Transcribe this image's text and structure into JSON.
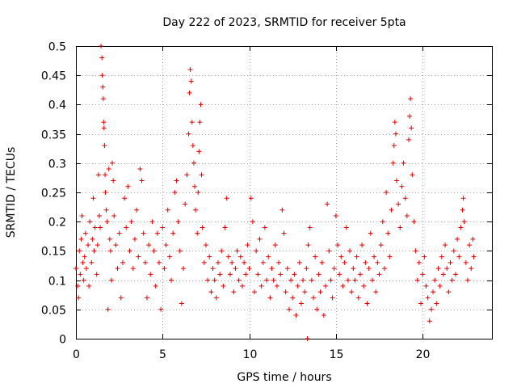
{
  "chart_data": {
    "type": "scatter",
    "title": "Day 222 of 2023, SRMTID for receiver 5pta",
    "xlabel": "GPS time / hours",
    "ylabel": "SRMTID / TECUs",
    "xlim": [
      0,
      24
    ],
    "ylim": [
      0,
      0.5
    ],
    "x_ticks": [
      "0",
      "5",
      "10",
      "15",
      "20"
    ],
    "y_ticks": [
      "0",
      "0.05",
      "0.1",
      "0.15",
      "0.2",
      "0.25",
      "0.3",
      "0.35",
      "0.4",
      "0.45",
      "0.5"
    ],
    "grid": true,
    "marker": "+",
    "color": "#e00000",
    "series": [
      {
        "name": "SRMTID",
        "points": [
          [
            0.0,
            0.12
          ],
          [
            0.1,
            0.09
          ],
          [
            0.15,
            0.07
          ],
          [
            0.2,
            0.15
          ],
          [
            0.25,
            0.11
          ],
          [
            0.3,
            0.17
          ],
          [
            0.35,
            0.21
          ],
          [
            0.4,
            0.13
          ],
          [
            0.45,
            0.1
          ],
          [
            0.5,
            0.14
          ],
          [
            0.55,
            0.18
          ],
          [
            0.6,
            0.12
          ],
          [
            0.7,
            0.16
          ],
          [
            0.75,
            0.09
          ],
          [
            0.8,
            0.2
          ],
          [
            0.9,
            0.13
          ],
          [
            0.95,
            0.17
          ],
          [
            1.0,
            0.24
          ],
          [
            1.05,
            0.15
          ],
          [
            1.1,
            0.19
          ],
          [
            1.2,
            0.11
          ],
          [
            1.25,
            0.16
          ],
          [
            1.3,
            0.28
          ],
          [
            1.35,
            0.21
          ],
          [
            1.4,
            0.19
          ],
          [
            1.45,
            0.5
          ],
          [
            1.5,
            0.48
          ],
          [
            1.52,
            0.45
          ],
          [
            1.55,
            0.43
          ],
          [
            1.58,
            0.41
          ],
          [
            1.6,
            0.37
          ],
          [
            1.62,
            0.36
          ],
          [
            1.65,
            0.33
          ],
          [
            1.68,
            0.28
          ],
          [
            1.7,
            0.25
          ],
          [
            1.75,
            0.22
          ],
          [
            1.8,
            0.2
          ],
          [
            1.85,
            0.05
          ],
          [
            1.9,
            0.29
          ],
          [
            1.95,
            0.17
          ],
          [
            2.0,
            0.15
          ],
          [
            2.05,
            0.1
          ],
          [
            2.1,
            0.3
          ],
          [
            2.15,
            0.27
          ],
          [
            2.2,
            0.21
          ],
          [
            2.3,
            0.16
          ],
          [
            2.4,
            0.12
          ],
          [
            2.5,
            0.18
          ],
          [
            2.6,
            0.07
          ],
          [
            2.7,
            0.13
          ],
          [
            2.8,
            0.24
          ],
          [
            2.9,
            0.19
          ],
          [
            3.0,
            0.26
          ],
          [
            3.1,
            0.15
          ],
          [
            3.2,
            0.2
          ],
          [
            3.3,
            0.12
          ],
          [
            3.4,
            0.17
          ],
          [
            3.5,
            0.22
          ],
          [
            3.6,
            0.14
          ],
          [
            3.7,
            0.29
          ],
          [
            3.8,
            0.27
          ],
          [
            3.9,
            0.18
          ],
          [
            4.0,
            0.13
          ],
          [
            4.1,
            0.07
          ],
          [
            4.2,
            0.16
          ],
          [
            4.3,
            0.11
          ],
          [
            4.4,
            0.2
          ],
          [
            4.5,
            0.15
          ],
          [
            4.6,
            0.09
          ],
          [
            4.7,
            0.18
          ],
          [
            4.8,
            0.13
          ],
          [
            4.9,
            0.05
          ],
          [
            5.0,
            0.19
          ],
          [
            5.1,
            0.12
          ],
          [
            5.2,
            0.16
          ],
          [
            5.3,
            0.22
          ],
          [
            5.4,
            0.14
          ],
          [
            5.5,
            0.1
          ],
          [
            5.6,
            0.18
          ],
          [
            5.7,
            0.25
          ],
          [
            5.8,
            0.27
          ],
          [
            5.9,
            0.2
          ],
          [
            6.0,
            0.15
          ],
          [
            6.1,
            0.06
          ],
          [
            6.2,
            0.12
          ],
          [
            6.3,
            0.23
          ],
          [
            6.4,
            0.28
          ],
          [
            6.5,
            0.35
          ],
          [
            6.55,
            0.42
          ],
          [
            6.6,
            0.46
          ],
          [
            6.65,
            0.44
          ],
          [
            6.7,
            0.37
          ],
          [
            6.75,
            0.33
          ],
          [
            6.8,
            0.3
          ],
          [
            6.85,
            0.26
          ],
          [
            6.9,
            0.22
          ],
          [
            7.0,
            0.18
          ],
          [
            7.05,
            0.25
          ],
          [
            7.1,
            0.32
          ],
          [
            7.15,
            0.37
          ],
          [
            7.2,
            0.4
          ],
          [
            7.25,
            0.28
          ],
          [
            7.3,
            0.19
          ],
          [
            7.4,
            0.13
          ],
          [
            7.5,
            0.16
          ],
          [
            7.6,
            0.1
          ],
          [
            7.7,
            0.14
          ],
          [
            7.8,
            0.08
          ],
          [
            7.9,
            0.12
          ],
          [
            8.0,
            0.1
          ],
          [
            8.1,
            0.07
          ],
          [
            8.2,
            0.13
          ],
          [
            8.3,
            0.11
          ],
          [
            8.4,
            0.15
          ],
          [
            8.5,
            0.09
          ],
          [
            8.6,
            0.19
          ],
          [
            8.7,
            0.24
          ],
          [
            8.8,
            0.14
          ],
          [
            8.9,
            0.11
          ],
          [
            9.0,
            0.13
          ],
          [
            9.1,
            0.08
          ],
          [
            9.2,
            0.12
          ],
          [
            9.3,
            0.15
          ],
          [
            9.4,
            0.1
          ],
          [
            9.5,
            0.14
          ],
          [
            9.6,
            0.09
          ],
          [
            9.7,
            0.13
          ],
          [
            9.8,
            0.11
          ],
          [
            9.9,
            0.16
          ],
          [
            10.0,
            0.12
          ],
          [
            10.1,
            0.24
          ],
          [
            10.2,
            0.2
          ],
          [
            10.3,
            0.08
          ],
          [
            10.4,
            0.15
          ],
          [
            10.5,
            0.11
          ],
          [
            10.6,
            0.17
          ],
          [
            10.7,
            0.09
          ],
          [
            10.8,
            0.13
          ],
          [
            10.9,
            0.19
          ],
          [
            11.0,
            0.1
          ],
          [
            11.1,
            0.14
          ],
          [
            11.2,
            0.07
          ],
          [
            11.3,
            0.12
          ],
          [
            11.4,
            0.1
          ],
          [
            11.5,
            0.16
          ],
          [
            11.6,
            0.09
          ],
          [
            11.7,
            0.13
          ],
          [
            11.8,
            0.11
          ],
          [
            11.9,
            0.22
          ],
          [
            12.0,
            0.18
          ],
          [
            12.1,
            0.08
          ],
          [
            12.2,
            0.12
          ],
          [
            12.3,
            0.05
          ],
          [
            12.4,
            0.1
          ],
          [
            12.5,
            0.07
          ],
          [
            12.6,
            0.11
          ],
          [
            12.7,
            0.04
          ],
          [
            12.8,
            0.09
          ],
          [
            12.9,
            0.13
          ],
          [
            13.0,
            0.06
          ],
          [
            13.1,
            0.1
          ],
          [
            13.2,
            0.08
          ],
          [
            13.3,
            0.12
          ],
          [
            13.35,
            0.0
          ],
          [
            13.4,
            0.16
          ],
          [
            13.5,
            0.19
          ],
          [
            13.6,
            0.1
          ],
          [
            13.7,
            0.07
          ],
          [
            13.8,
            0.14
          ],
          [
            13.9,
            0.05
          ],
          [
            14.0,
            0.11
          ],
          [
            14.1,
            0.08
          ],
          [
            14.2,
            0.13
          ],
          [
            14.3,
            0.04
          ],
          [
            14.4,
            0.09
          ],
          [
            14.5,
            0.23
          ],
          [
            14.6,
            0.15
          ],
          [
            14.7,
            0.1
          ],
          [
            14.8,
            0.07
          ],
          [
            14.9,
            0.12
          ],
          [
            15.0,
            0.21
          ],
          [
            15.1,
            0.16
          ],
          [
            15.2,
            0.11
          ],
          [
            15.3,
            0.14
          ],
          [
            15.4,
            0.09
          ],
          [
            15.5,
            0.13
          ],
          [
            15.6,
            0.19
          ],
          [
            15.7,
            0.1
          ],
          [
            15.8,
            0.15
          ],
          [
            15.9,
            0.08
          ],
          [
            16.0,
            0.12
          ],
          [
            16.1,
            0.1
          ],
          [
            16.2,
            0.14
          ],
          [
            16.3,
            0.07
          ],
          [
            16.4,
            0.11
          ],
          [
            16.5,
            0.16
          ],
          [
            16.6,
            0.09
          ],
          [
            16.7,
            0.13
          ],
          [
            16.8,
            0.06
          ],
          [
            16.9,
            0.12
          ],
          [
            17.0,
            0.18
          ],
          [
            17.1,
            0.1
          ],
          [
            17.2,
            0.14
          ],
          [
            17.3,
            0.08
          ],
          [
            17.4,
            0.13
          ],
          [
            17.5,
            0.11
          ],
          [
            17.6,
            0.16
          ],
          [
            17.7,
            0.2
          ],
          [
            17.8,
            0.12
          ],
          [
            17.9,
            0.25
          ],
          [
            18.0,
            0.18
          ],
          [
            18.1,
            0.14
          ],
          [
            18.2,
            0.22
          ],
          [
            18.3,
            0.3
          ],
          [
            18.35,
            0.33
          ],
          [
            18.4,
            0.37
          ],
          [
            18.45,
            0.35
          ],
          [
            18.5,
            0.27
          ],
          [
            18.6,
            0.23
          ],
          [
            18.7,
            0.19
          ],
          [
            18.8,
            0.26
          ],
          [
            18.9,
            0.3
          ],
          [
            19.0,
            0.24
          ],
          [
            19.1,
            0.21
          ],
          [
            19.2,
            0.34
          ],
          [
            19.25,
            0.38
          ],
          [
            19.3,
            0.41
          ],
          [
            19.35,
            0.36
          ],
          [
            19.4,
            0.28
          ],
          [
            19.5,
            0.2
          ],
          [
            19.6,
            0.15
          ],
          [
            19.7,
            0.1
          ],
          [
            19.8,
            0.13
          ],
          [
            19.9,
            0.06
          ],
          [
            20.0,
            0.11
          ],
          [
            20.1,
            0.14
          ],
          [
            20.2,
            0.09
          ],
          [
            20.3,
            0.07
          ],
          [
            20.4,
            0.03
          ],
          [
            20.5,
            0.05
          ],
          [
            20.6,
            0.08
          ],
          [
            20.7,
            0.1
          ],
          [
            20.8,
            0.06
          ],
          [
            20.9,
            0.12
          ],
          [
            21.0,
            0.09
          ],
          [
            21.1,
            0.14
          ],
          [
            21.2,
            0.11
          ],
          [
            21.3,
            0.16
          ],
          [
            21.4,
            0.12
          ],
          [
            21.5,
            0.08
          ],
          [
            21.6,
            0.13
          ],
          [
            21.7,
            0.1
          ],
          [
            21.8,
            0.15
          ],
          [
            21.9,
            0.11
          ],
          [
            22.0,
            0.17
          ],
          [
            22.1,
            0.14
          ],
          [
            22.2,
            0.19
          ],
          [
            22.3,
            0.22
          ],
          [
            22.35,
            0.24
          ],
          [
            22.4,
            0.2
          ],
          [
            22.5,
            0.13
          ],
          [
            22.6,
            0.1
          ],
          [
            22.7,
            0.16
          ],
          [
            22.8,
            0.12
          ],
          [
            22.9,
            0.17
          ],
          [
            22.95,
            0.14
          ]
        ]
      }
    ]
  }
}
